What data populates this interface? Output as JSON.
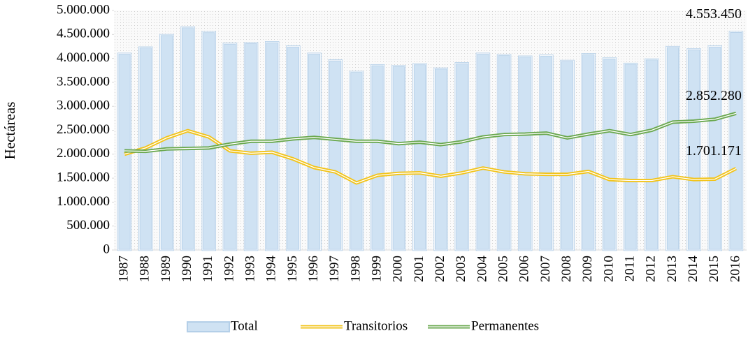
{
  "chart_data": {
    "type": "bar-line",
    "y_label": "Hectáreas",
    "categories": [
      "1987",
      "1988",
      "1989",
      "1990",
      "1991",
      "1992",
      "1993",
      "1994",
      "1995",
      "1996",
      "1997",
      "1998",
      "1999",
      "2000",
      "2001",
      "2002",
      "2003",
      "2004",
      "2005",
      "2006",
      "2007",
      "2008",
      "2009",
      "2010",
      "2011",
      "2012",
      "2013",
      "2014",
      "2015",
      "2016"
    ],
    "series": [
      {
        "name": "Total",
        "kind": "bar",
        "color": "#cfe2f3",
        "values": [
          4100000,
          4230000,
          4490000,
          4650000,
          4550000,
          4310000,
          4320000,
          4340000,
          4250000,
          4100000,
          3960000,
          3720000,
          3860000,
          3840000,
          3880000,
          3790000,
          3900000,
          4100000,
          4070000,
          4040000,
          4060000,
          3950000,
          4090000,
          4000000,
          3890000,
          3980000,
          4240000,
          4190000,
          4250000,
          4553450
        ],
        "value_labels": [
          null,
          null,
          null,
          null,
          null,
          null,
          null,
          null,
          null,
          null,
          null,
          null,
          null,
          null,
          null,
          null,
          null,
          null,
          null,
          null,
          null,
          null,
          null,
          null,
          null,
          null,
          null,
          null,
          null,
          "4.553.450"
        ]
      },
      {
        "name": "Transitorios",
        "kind": "line",
        "color": "#f2c318",
        "values": [
          2000000,
          2130000,
          2340000,
          2490000,
          2360000,
          2070000,
          2020000,
          2040000,
          1900000,
          1720000,
          1630000,
          1400000,
          1560000,
          1600000,
          1610000,
          1540000,
          1610000,
          1710000,
          1630000,
          1590000,
          1580000,
          1580000,
          1640000,
          1470000,
          1450000,
          1450000,
          1530000,
          1470000,
          1480000,
          1701171
        ],
        "value_labels": [
          null,
          null,
          null,
          null,
          null,
          null,
          null,
          null,
          null,
          null,
          null,
          null,
          null,
          null,
          null,
          null,
          null,
          null,
          null,
          null,
          null,
          null,
          null,
          null,
          null,
          null,
          null,
          null,
          null,
          "1.701.171"
        ]
      },
      {
        "name": "Permanentes",
        "kind": "line",
        "color": "#6aa84f",
        "values": [
          2070000,
          2060000,
          2110000,
          2120000,
          2130000,
          2210000,
          2270000,
          2270000,
          2320000,
          2350000,
          2310000,
          2270000,
          2270000,
          2220000,
          2250000,
          2200000,
          2260000,
          2360000,
          2410000,
          2420000,
          2440000,
          2340000,
          2420000,
          2490000,
          2410000,
          2500000,
          2670000,
          2690000,
          2730000,
          2852280
        ],
        "value_labels": [
          null,
          null,
          null,
          null,
          null,
          null,
          null,
          null,
          null,
          null,
          null,
          null,
          null,
          null,
          null,
          null,
          null,
          null,
          null,
          null,
          null,
          null,
          null,
          null,
          null,
          null,
          null,
          null,
          null,
          "2.852.280"
        ]
      }
    ],
    "ylim": [
      0,
      5000000
    ],
    "yticks": [
      0,
      {
        "value": 500000,
        "label": "500.000"
      },
      {
        "value": 1000000,
        "label": "1.000.000"
      },
      {
        "value": 1500000,
        "label": "1.500.000"
      },
      {
        "value": 2000000,
        "label": "2.000.000"
      },
      {
        "value": 2500000,
        "label": "2.500.000"
      },
      {
        "value": 3000000,
        "label": "3.000.000"
      },
      {
        "value": 3500000,
        "label": "3.500.000"
      },
      {
        "value": 4000000,
        "label": "4.000.000"
      },
      {
        "value": 4500000,
        "label": "4.500.000"
      },
      {
        "value": 5000000,
        "label": "5.000.000"
      }
    ],
    "legend": "bottom"
  }
}
